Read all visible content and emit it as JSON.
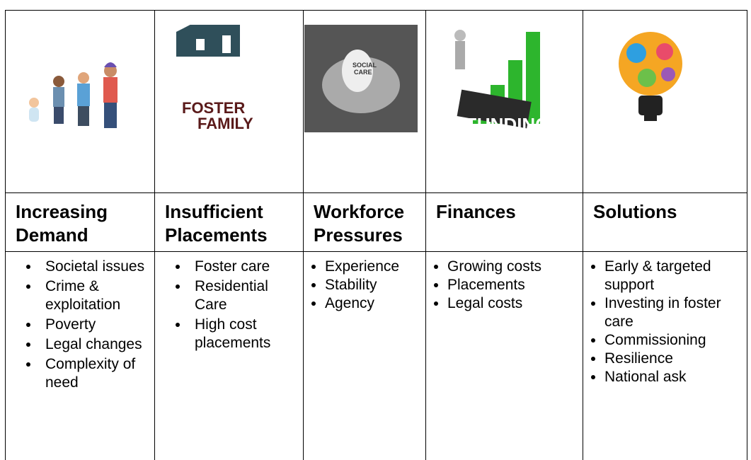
{
  "table": {
    "columns": [
      {
        "heading": "Increasing Demand",
        "items": [
          "Societal issues",
          "Crime & exploitation",
          "Poverty",
          "Legal changes",
          "Complexity of need"
        ]
      },
      {
        "heading": "Insufficient Placements",
        "items": [
          "Foster care",
          "Residential Care",
          "High cost placements"
        ],
        "image_text": [
          "FOSTER",
          "FAMILY"
        ]
      },
      {
        "heading": "Workforce Pressures",
        "items": [
          "Experience",
          "Stability",
          "Agency"
        ],
        "image_text": [
          "SOCIAL",
          "CARE"
        ]
      },
      {
        "heading": "Finances",
        "items": [
          "Growing costs",
          "Placements",
          "Legal costs"
        ],
        "image_text": [
          "FUNDING"
        ]
      },
      {
        "heading": "Solutions",
        "items": [
          "Early & targeted support",
          "Investing in foster care",
          "Commissioning",
          "Resilience",
          "National ask"
        ]
      }
    ]
  }
}
